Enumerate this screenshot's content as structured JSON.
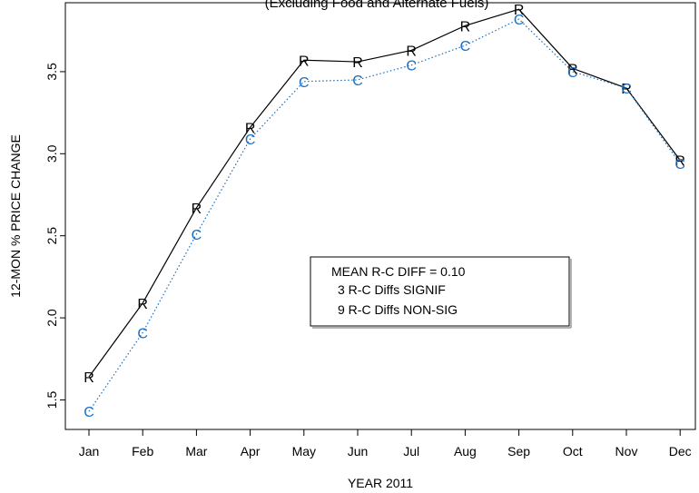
{
  "chart_data": {
    "type": "line",
    "title": "(Excluding Food and Alternate Fuels)",
    "xlabel": "YEAR 2011",
    "ylabel": "12-MON % PRICE CHANGE",
    "categories": [
      "Jan",
      "Feb",
      "Mar",
      "Apr",
      "May",
      "Jun",
      "Jul",
      "Aug",
      "Sep",
      "Oct",
      "Nov",
      "Dec"
    ],
    "ylim": [
      1.32,
      3.92
    ],
    "yticks": [
      "1.5",
      "2.0",
      "2.5",
      "3.0",
      "3.5"
    ],
    "grid": false,
    "series": [
      {
        "marker": "R",
        "line_style": "solid",
        "color": "#000000",
        "values": [
          1.64,
          2.09,
          2.67,
          3.16,
          3.57,
          3.56,
          3.63,
          3.78,
          3.88,
          3.52,
          3.4,
          2.96
        ]
      },
      {
        "marker": "C",
        "line_style": "dotted",
        "color": "#1a6fc2",
        "values": [
          1.43,
          1.91,
          2.51,
          3.09,
          3.44,
          3.45,
          3.54,
          3.66,
          3.82,
          3.5,
          3.4,
          2.94
        ]
      }
    ],
    "annotation": {
      "lines": [
        "MEAN R-C DIFF = 0.10",
        "3 R-C Diffs SIGNIF",
        "9 R-C Diffs NON-SIG"
      ]
    }
  }
}
